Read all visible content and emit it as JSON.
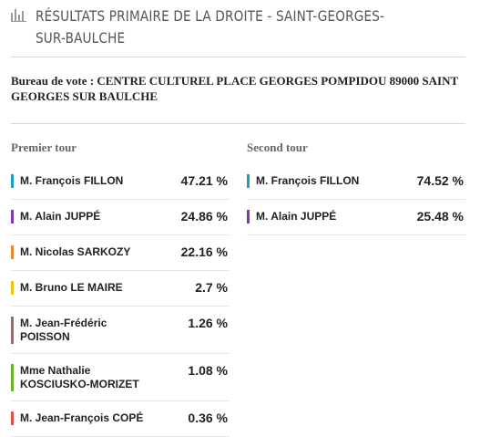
{
  "header": {
    "title": "RÉSULTATS PRIMAIRE DE LA DROITE - SAINT-GEORGES-SUR-BAULCHE"
  },
  "bureau": "Bureau de vote : CENTRE CULTUREL PLACE GEORGES POMPIDOU 89000 SAINT GEORGES SUR BAULCHE",
  "rounds": [
    {
      "title": "Premier tour",
      "rows": [
        {
          "name": "M. François FILLON",
          "result": "47.21 %",
          "color": "#1a9fc0"
        },
        {
          "name": "M. Alain JUPPÉ",
          "result": "24.86 %",
          "color": "#7b3fa0"
        },
        {
          "name": "M. Nicolas SARKOZY",
          "result": "22.16 %",
          "color": "#e8892b"
        },
        {
          "name": "M. Bruno LE MAIRE",
          "result": "2.7 %",
          "color": "#e6c51c"
        },
        {
          "name": "M. Jean-Frédéric POISSON",
          "result": "1.26 %",
          "color": "#8a7070"
        },
        {
          "name": "Mme Nathalie KOSCIUSKO-MORIZET",
          "result": "1.08 %",
          "color": "#6ab22e"
        },
        {
          "name": "M. Jean-François COPÉ",
          "result": "0.36 %",
          "color": "#e0504b"
        }
      ]
    },
    {
      "title": "Second tour",
      "rows": [
        {
          "name": "M. François FILLON",
          "result": "74.52 %",
          "color": "#1a9fc0"
        },
        {
          "name": "M. Alain JUPPÉ",
          "result": "25.48 %",
          "color": "#7b3fa0"
        }
      ]
    }
  ]
}
